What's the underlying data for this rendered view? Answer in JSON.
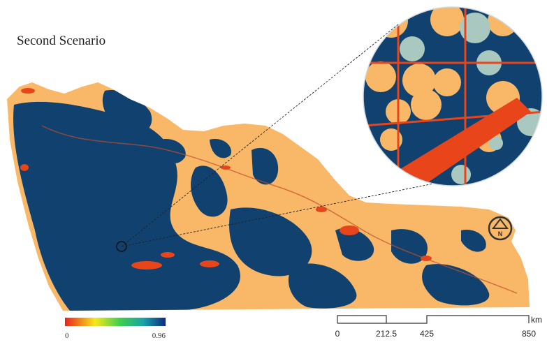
{
  "title": "Second Scenario",
  "legend": {
    "min": 0,
    "max": 0.96
  },
  "scale_bar": {
    "labels": [
      0,
      212.5,
      425,
      850
    ],
    "unit": "km"
  },
  "north_arrow": {
    "label": "N"
  }
}
